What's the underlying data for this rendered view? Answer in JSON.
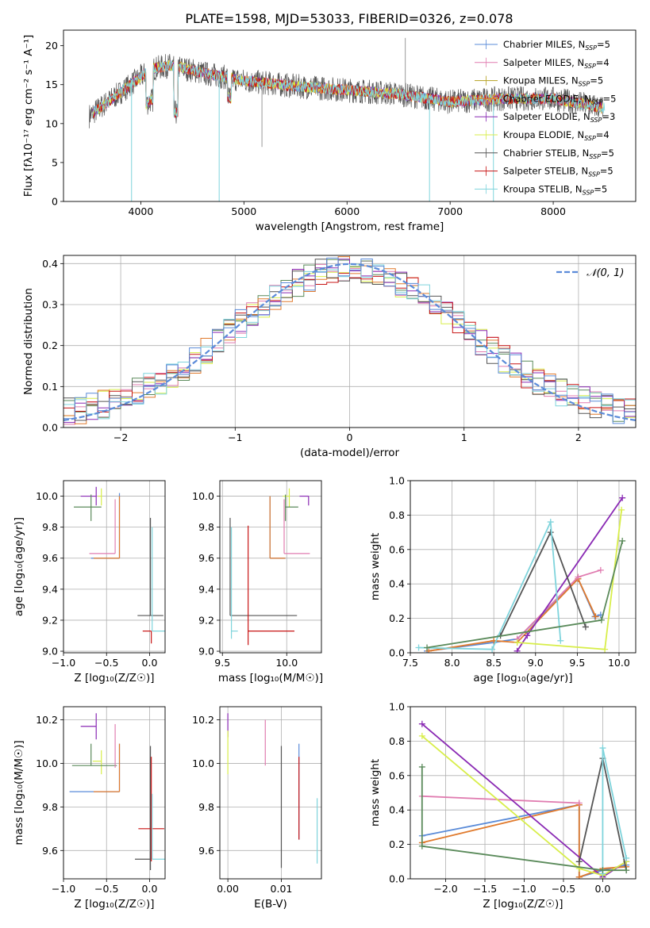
{
  "title": "PLATE=1598, MJD=53033, FIBERID=0326, z=0.078",
  "colors": {
    "chabrier_miles": "#5a8bd8",
    "salpeter_miles": "#e07cb0",
    "kroupa_miles": "#b5a020",
    "chabrier_elodie": "#e07a2d",
    "salpeter_elodie": "#8a2ab4",
    "kroupa_elodie": "#d8ee4a",
    "chabrier_stelib": "#555555",
    "salpeter_stelib": "#c81414",
    "kroupa_stelib": "#7fd4dc",
    "extra_green": "#5a8a5a",
    "gaussian": "#5b8bd9",
    "grid": "#b0b0b0"
  },
  "chart_data": [
    {
      "id": "spectrum",
      "type": "line",
      "xlabel": "wavelength [Angstrom, rest frame]",
      "ylabel": "Flux [fλ10⁻¹⁷ erg cm⁻² s⁻¹ A⁻¹]",
      "xlim": [
        3250,
        8800
      ],
      "ylim": [
        0,
        22
      ],
      "xticks": [
        4000,
        5000,
        6000,
        7000,
        8000
      ],
      "yticks": [
        0,
        5,
        10,
        15,
        20
      ],
      "grid": false,
      "legend": "top-right",
      "series": [
        {
          "name": "Chabrier MILES, N_SSP=5",
          "color_key": "chabrier_miles"
        },
        {
          "name": "Salpeter MILES, N_SSP=4",
          "color_key": "salpeter_miles"
        },
        {
          "name": "Kroupa MILES, N_SSP=5",
          "color_key": "kroupa_miles"
        },
        {
          "name": "Chabrier ELODIE, N_SSP=5",
          "color_key": "chabrier_elodie"
        },
        {
          "name": "Salpeter ELODIE, N_SSP=3",
          "color_key": "salpeter_elodie"
        },
        {
          "name": "Kroupa ELODIE, N_SSP=4",
          "color_key": "kroupa_elodie"
        },
        {
          "name": "Chabrier STELIB, N_SSP=5",
          "color_key": "chabrier_stelib"
        },
        {
          "name": "Salpeter STELIB, N_SSP=5",
          "color_key": "salpeter_stelib"
        },
        {
          "name": "Kroupa STELIB, N_SSP=5",
          "color_key": "kroupa_stelib"
        }
      ],
      "continuum": {
        "x": [
          3500,
          3700,
          3900,
          4100,
          4300,
          4600,
          5000,
          5500,
          6000,
          6500,
          7000,
          7500,
          8000,
          8500
        ],
        "y": [
          11,
          13,
          15,
          17,
          17.5,
          16.5,
          15.5,
          14.8,
          14.3,
          13.8,
          12.8,
          13.2,
          13.2,
          12
        ]
      },
      "features": [
        {
          "x": 3910,
          "y": 0
        },
        {
          "x": 4760,
          "y": 0
        },
        {
          "x": 6800,
          "y": 0
        },
        {
          "x": 7420,
          "y": 0
        },
        {
          "x": 6565,
          "y": 21
        },
        {
          "x": 5175,
          "y": 7
        }
      ]
    },
    {
      "id": "residuals",
      "type": "line",
      "xlabel": "(data-model)/error",
      "ylabel": "Normed distribution",
      "xlim": [
        -2.5,
        2.5
      ],
      "ylim": [
        0,
        0.42
      ],
      "xticks": [
        -2,
        -1,
        0,
        1,
        2
      ],
      "yticks": [
        0,
        0.1,
        0.2,
        0.3,
        0.4
      ],
      "grid": true,
      "legend": "top-right",
      "legend_label": "𝒩(0, 1)",
      "curve": "standard normal",
      "hist_bin_width": 0.1
    },
    {
      "id": "age_vs_Z",
      "type": "scatter",
      "xlabel": "Z [log₁₀(Z/Z☉)]",
      "ylabel": "age  [log₁₀(age/yr)]",
      "xlim": [
        -1.0,
        0.18
      ],
      "ylim": [
        8.99,
        10.1
      ],
      "xticks": [
        -1.0,
        -0.5,
        0.0
      ],
      "yticks": [
        9.0,
        9.2,
        9.4,
        9.6,
        9.8,
        10.0
      ],
      "grid": true,
      "points": [
        {
          "x": -0.62,
          "y": 10.0,
          "xerr": [
            0.18,
            0.0
          ],
          "yerr": [
            0.06,
            0.06
          ],
          "color_key": "salpeter_elodie"
        },
        {
          "x": -0.56,
          "y": 10.0,
          "xerr": [
            0.04,
            0.0
          ],
          "yerr": [
            0.06,
            0.05
          ],
          "color_key": "kroupa_elodie"
        },
        {
          "x": -0.68,
          "y": 9.93,
          "xerr": [
            0.2,
            0.12
          ],
          "yerr": [
            0.09,
            0.08
          ],
          "color_key": "extra_green"
        },
        {
          "x": -0.35,
          "y": 9.6,
          "xerr": [
            0.33,
            0.0
          ],
          "yerr": [
            0.0,
            0.42
          ],
          "color_key": "chabrier_miles"
        },
        {
          "x": -0.35,
          "y": 9.6,
          "xerr": [
            0.3,
            0.0
          ],
          "yerr": [
            0.0,
            0.4
          ],
          "color_key": "chabrier_elodie"
        },
        {
          "x": -0.4,
          "y": 9.63,
          "xerr": [
            0.3,
            0.0
          ],
          "yerr": [
            0.0,
            0.35
          ],
          "color_key": "salpeter_miles"
        },
        {
          "x": 0.01,
          "y": 9.23,
          "xerr": [
            0.15,
            0.15
          ],
          "yerr": [
            0.0,
            0.63
          ],
          "color_key": "chabrier_stelib"
        },
        {
          "x": 0.02,
          "y": 9.13,
          "xerr": [
            0.1,
            0.0
          ],
          "yerr": [
            0.08,
            0.0
          ],
          "color_key": "salpeter_stelib"
        },
        {
          "x": 0.03,
          "y": 9.13,
          "xerr": [
            0.0,
            0.15
          ],
          "yerr": [
            0.0,
            0.67
          ],
          "color_key": "kroupa_stelib"
        }
      ]
    },
    {
      "id": "age_vs_mass",
      "type": "scatter",
      "xlabel": "mass [log₁₀(M/M☉)]",
      "ylabel": "",
      "xlim": [
        9.48,
        10.27
      ],
      "ylim": [
        8.99,
        10.1
      ],
      "xticks": [
        9.5,
        10.0
      ],
      "yticks": [
        9.0,
        9.2,
        9.4,
        9.6,
        9.8,
        10.0
      ],
      "grid": true,
      "points": [
        {
          "x": 10.17,
          "y": 10.0,
          "xerr": [
            0.07,
            0.0
          ],
          "yerr": [
            0.06,
            0.0
          ],
          "color_key": "salpeter_elodie"
        },
        {
          "x": 10.02,
          "y": 10.0,
          "xerr": [
            0.05,
            0.0
          ],
          "yerr": [
            0.07,
            0.05
          ],
          "color_key": "kroupa_elodie"
        },
        {
          "x": 9.99,
          "y": 9.93,
          "xerr": [
            0.0,
            0.1
          ],
          "yerr": [
            0.09,
            0.08
          ],
          "color_key": "extra_green"
        },
        {
          "x": 9.87,
          "y": 9.6,
          "xerr": [
            0.0,
            0.12
          ],
          "yerr": [
            0.0,
            0.4
          ],
          "color_key": "chabrier_miles"
        },
        {
          "x": 9.87,
          "y": 9.6,
          "xerr": [
            0.0,
            0.12
          ],
          "yerr": [
            0.0,
            0.4
          ],
          "color_key": "chabrier_elodie"
        },
        {
          "x": 9.98,
          "y": 9.63,
          "xerr": [
            0.0,
            0.2
          ],
          "yerr": [
            0.0,
            0.35
          ],
          "color_key": "salpeter_miles"
        },
        {
          "x": 9.56,
          "y": 9.23,
          "xerr": [
            0.0,
            0.52
          ],
          "yerr": [
            0.0,
            0.63
          ],
          "color_key": "chabrier_stelib"
        },
        {
          "x": 9.7,
          "y": 9.13,
          "xerr": [
            0.0,
            0.36
          ],
          "yerr": [
            0.09,
            0.68
          ],
          "color_key": "salpeter_stelib"
        },
        {
          "x": 9.57,
          "y": 9.13,
          "xerr": [
            0.0,
            0.05
          ],
          "yerr": [
            0.05,
            0.67
          ],
          "color_key": "kroupa_stelib"
        }
      ]
    },
    {
      "id": "weight_vs_age",
      "type": "line",
      "xlabel": "age  [log₁₀(age/yr)]",
      "ylabel": "mass weight",
      "xlim": [
        7.5,
        10.2
      ],
      "ylim": [
        0.0,
        1.0
      ],
      "xticks": [
        7.5,
        8.0,
        8.5,
        9.0,
        9.5,
        10.0
      ],
      "yticks": [
        0.0,
        0.2,
        0.4,
        0.6,
        0.8,
        1.0
      ],
      "grid": true,
      "series": [
        {
          "color_key": "chabrier_miles",
          "x": [
            7.7,
            8.5,
            8.78,
            9.51,
            9.71,
            9.78
          ],
          "y": [
            0.01,
            0.06,
            0.08,
            0.43,
            0.21,
            0.22
          ]
        },
        {
          "color_key": "chabrier_elodie",
          "x": [
            7.72,
            8.5,
            8.78,
            9.51,
            9.72
          ],
          "y": [
            0.01,
            0.07,
            0.06,
            0.43,
            0.21
          ]
        },
        {
          "color_key": "salpeter_miles",
          "x": [
            8.78,
            9.51,
            9.78
          ],
          "y": [
            0.08,
            0.44,
            0.48
          ]
        },
        {
          "color_key": "salpeter_elodie",
          "x": [
            8.78,
            8.9,
            10.04
          ],
          "y": [
            0.01,
            0.1,
            0.9
          ]
        },
        {
          "color_key": "kroupa_elodie",
          "x": [
            8.78,
            9.83,
            10.03
          ],
          "y": [
            0.06,
            0.02,
            0.83
          ]
        },
        {
          "color_key": "chabrier_stelib",
          "x": [
            8.58,
            9.18,
            9.6
          ],
          "y": [
            0.1,
            0.7,
            0.15
          ]
        },
        {
          "color_key": "kroupa_stelib",
          "x": [
            7.6,
            8.48,
            9.18,
            9.3
          ],
          "y": [
            0.03,
            0.02,
            0.76,
            0.07
          ]
        },
        {
          "color_key": "extra_green",
          "x": [
            7.7,
            9.79,
            10.04
          ],
          "y": [
            0.03,
            0.19,
            0.65
          ]
        }
      ]
    },
    {
      "id": "mass_vs_Z",
      "type": "scatter",
      "xlabel": "Z [log₁₀(Z/Z☉)]",
      "ylabel": "mass [log₁₀(M/M☉)]",
      "xlim": [
        -1.0,
        0.18
      ],
      "ylim": [
        9.47,
        10.26
      ],
      "xticks": [
        -1.0,
        -0.5,
        0.0
      ],
      "yticks": [
        9.6,
        9.8,
        10.0,
        10.2
      ],
      "grid": true,
      "points": [
        {
          "x": -0.62,
          "y": 10.17,
          "xerr": [
            0.18,
            0.0
          ],
          "yerr": [
            0.06,
            0.06
          ],
          "color_key": "salpeter_elodie"
        },
        {
          "x": -0.56,
          "y": 10.01,
          "xerr": [
            0.1,
            0.0
          ],
          "yerr": [
            0.06,
            0.05
          ],
          "color_key": "kroupa_elodie"
        },
        {
          "x": -0.68,
          "y": 9.99,
          "xerr": [
            0.22,
            0.3
          ],
          "yerr": [
            0.0,
            0.1
          ],
          "color_key": "extra_green"
        },
        {
          "x": -0.35,
          "y": 9.87,
          "xerr": [
            0.58,
            0.0
          ],
          "yerr": [
            0.0,
            0.22
          ],
          "color_key": "chabrier_miles"
        },
        {
          "x": -0.35,
          "y": 9.87,
          "xerr": [
            0.3,
            0.0
          ],
          "yerr": [
            0.0,
            0.22
          ],
          "color_key": "chabrier_elodie"
        },
        {
          "x": -0.4,
          "y": 9.98,
          "xerr": [
            0.0,
            0.0
          ],
          "yerr": [
            0.0,
            0.2
          ],
          "color_key": "salpeter_miles"
        },
        {
          "x": 0.01,
          "y": 9.56,
          "xerr": [
            0.18,
            0.0
          ],
          "yerr": [
            0.05,
            0.52
          ],
          "color_key": "chabrier_stelib"
        },
        {
          "x": 0.02,
          "y": 9.7,
          "xerr": [
            0.15,
            0.15
          ],
          "yerr": [
            0.15,
            0.33
          ],
          "color_key": "salpeter_stelib"
        },
        {
          "x": 0.03,
          "y": 9.56,
          "xerr": [
            0.0,
            0.15
          ],
          "yerr": [
            0.0,
            0.3
          ],
          "color_key": "kroupa_stelib"
        }
      ]
    },
    {
      "id": "mass_vs_ebv",
      "type": "scatter",
      "xlabel": "E(B-V)",
      "ylabel": "",
      "xlim": [
        -0.0015,
        0.0175
      ],
      "ylim": [
        9.47,
        10.26
      ],
      "xticks": [
        0.0,
        0.01
      ],
      "yticks": [
        9.6,
        9.8,
        10.0,
        10.2
      ],
      "grid": true,
      "points": [
        {
          "x": 0.0,
          "y": 10.17,
          "xerr": [
            0,
            0
          ],
          "yerr": [
            0.05,
            0.06
          ],
          "color_key": "salpeter_elodie"
        },
        {
          "x": 0.0,
          "y": 10.05,
          "xerr": [
            0,
            0
          ],
          "yerr": [
            0.1,
            0.1
          ],
          "color_key": "kroupa_elodie"
        },
        {
          "x": 0.007,
          "y": 10.1,
          "xerr": [
            0,
            0
          ],
          "yerr": [
            0.11,
            0.1
          ],
          "color_key": "salpeter_miles"
        },
        {
          "x": 0.01,
          "y": 9.8,
          "xerr": [
            0,
            0
          ],
          "yerr": [
            0.28,
            0.28
          ],
          "color_key": "chabrier_stelib"
        },
        {
          "x": 0.0133,
          "y": 9.87,
          "xerr": [
            0,
            0
          ],
          "yerr": [
            0.22,
            0.22
          ],
          "color_key": "chabrier_miles"
        },
        {
          "x": 0.0133,
          "y": 9.84,
          "xerr": [
            0,
            0
          ],
          "yerr": [
            0.19,
            0.19
          ],
          "color_key": "salpeter_stelib"
        },
        {
          "x": 0.0167,
          "y": 9.69,
          "xerr": [
            0,
            0
          ],
          "yerr": [
            0.15,
            0.15
          ],
          "color_key": "kroupa_stelib"
        }
      ]
    },
    {
      "id": "weight_vs_Z",
      "type": "line",
      "xlabel": "Z [log₁₀(Z/Z☉)]",
      "ylabel": "mass weight",
      "xlim": [
        -2.45,
        0.42
      ],
      "ylim": [
        0.0,
        1.0
      ],
      "xticks": [
        -2.0,
        -1.5,
        -1.0,
        -0.5,
        0.0
      ],
      "yticks": [
        0.0,
        0.2,
        0.4,
        0.6,
        0.8,
        1.0
      ],
      "grid": true,
      "series": [
        {
          "color_key": "chabrier_miles",
          "x": [
            -2.3,
            -0.3,
            -0.3,
            0.0,
            0.3
          ],
          "y": [
            0.25,
            0.43,
            0.01,
            0.05,
            0.08
          ]
        },
        {
          "color_key": "chabrier_elodie",
          "x": [
            -2.3,
            -0.3,
            -0.3,
            0.0,
            0.3
          ],
          "y": [
            0.21,
            0.43,
            0.01,
            0.06,
            0.07
          ]
        },
        {
          "color_key": "salpeter_miles",
          "x": [
            -2.3,
            -0.3
          ],
          "y": [
            0.48,
            0.44
          ]
        },
        {
          "color_key": "salpeter_elodie",
          "x": [
            -2.3,
            0.0,
            0.3
          ],
          "y": [
            0.9,
            0.01,
            0.1
          ]
        },
        {
          "color_key": "kroupa_elodie",
          "x": [
            -2.3,
            -0.3,
            0.0,
            0.3
          ],
          "y": [
            0.83,
            0.06,
            0.02,
            0.1
          ]
        },
        {
          "color_key": "chabrier_stelib",
          "x": [
            -0.3,
            0.0,
            0.3
          ],
          "y": [
            0.1,
            0.7,
            0.05
          ]
        },
        {
          "color_key": "kroupa_stelib",
          "x": [
            0.0,
            0.0,
            0.3
          ],
          "y": [
            0.03,
            0.76,
            0.12
          ]
        },
        {
          "color_key": "extra_green",
          "x": [
            -2.3,
            -2.3,
            0.0,
            0.3
          ],
          "y": [
            0.65,
            0.19,
            0.05,
            0.05
          ]
        }
      ]
    }
  ]
}
